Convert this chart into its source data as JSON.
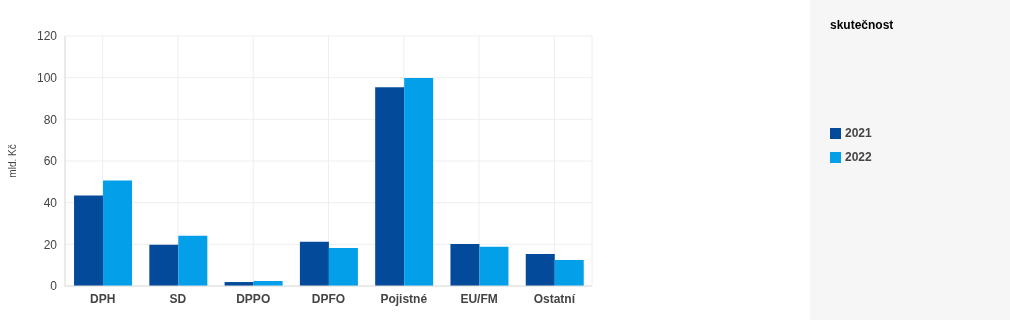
{
  "chart_data": {
    "type": "bar",
    "ylabel": "mld. Kč",
    "legend_title": "skutečnost",
    "categories": [
      "DPH",
      "SD",
      "DPPO",
      "DPFO",
      "Pojistné",
      "EU/FM",
      "Ostatní"
    ],
    "series": [
      {
        "name": "2021",
        "color": "#034b9a",
        "values": [
          43.4,
          19.8,
          1.9,
          21.2,
          95.4,
          20.2,
          15.4
        ]
      },
      {
        "name": "2022",
        "color": "#039fe9",
        "values": [
          50.6,
          24.1,
          2.4,
          18.3,
          99.8,
          18.8,
          12.5
        ]
      }
    ],
    "ylim": [
      0,
      120
    ],
    "yticks": [
      0,
      20,
      40,
      60,
      80,
      100,
      120
    ],
    "grid": true,
    "legend": "right"
  }
}
